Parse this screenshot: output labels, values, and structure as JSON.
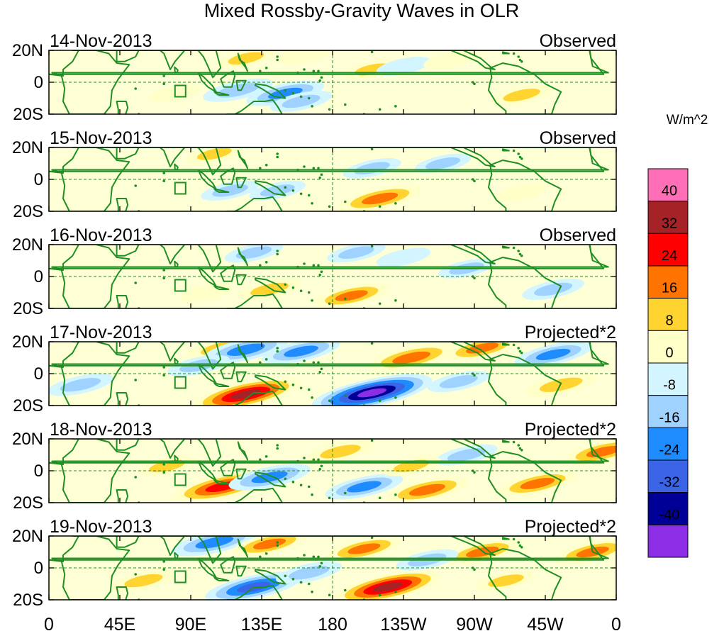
{
  "chart_data": {
    "type": "heatmap",
    "title": "Mixed Rossby-Gravity Waves in OLR",
    "units": "W/m^2",
    "x_ticks": [
      "0",
      "45E",
      "90E",
      "135E",
      "180",
      "135W",
      "90W",
      "45W",
      "0"
    ],
    "x_tick_degrees": [
      0,
      45,
      90,
      135,
      180,
      225,
      270,
      315,
      360
    ],
    "y_ticks": [
      "20N",
      "0",
      "20S"
    ],
    "y_tick_degrees": [
      20,
      0,
      -20
    ],
    "lon_range": [
      0,
      360
    ],
    "lat_range": [
      -20,
      20
    ],
    "colorbar": {
      "levels": [
        "40",
        "32",
        "24",
        "16",
        "8",
        "0",
        "-8",
        "-16",
        "-24",
        "-32",
        "-40"
      ],
      "level_values": [
        40,
        32,
        24,
        16,
        8,
        0,
        -8,
        -16,
        -24,
        -32,
        -40
      ],
      "colors": [
        "#ff6fb8",
        "#a52326",
        "#ff0000",
        "#ff7300",
        "#ffd431",
        "#ffffc8",
        "#d2f5ff",
        "#a0d2ff",
        "#1e8cff",
        "#3c64e6",
        "#000096",
        "#8c2ee6"
      ]
    },
    "panels": [
      {
        "date": "14-Nov-2013",
        "label": "Observed",
        "anomalies": [
          {
            "lon": 120,
            "lat": -5,
            "value": -16
          },
          {
            "lon": 150,
            "lat": -7,
            "value": -20
          },
          {
            "lon": 160,
            "lat": -12,
            "value": -12
          },
          {
            "lon": 125,
            "lat": 15,
            "value": 10
          },
          {
            "lon": 162,
            "lat": 17,
            "value": 8
          },
          {
            "lon": 205,
            "lat": 8,
            "value": 9
          },
          {
            "lon": 225,
            "lat": 10,
            "value": -8
          },
          {
            "lon": 255,
            "lat": 14,
            "value": 8
          },
          {
            "lon": 300,
            "lat": -8,
            "value": 11
          },
          {
            "lon": 80,
            "lat": -7,
            "value": 6
          }
        ]
      },
      {
        "date": "15-Nov-2013",
        "label": "Observed",
        "anomalies": [
          {
            "lon": 210,
            "lat": -12,
            "value": 22
          },
          {
            "lon": 115,
            "lat": -7,
            "value": -10
          },
          {
            "lon": 145,
            "lat": -7,
            "value": -9
          },
          {
            "lon": 105,
            "lat": 16,
            "value": 9
          },
          {
            "lon": 205,
            "lat": 7,
            "value": -10
          },
          {
            "lon": 250,
            "lat": 10,
            "value": -9
          },
          {
            "lon": 300,
            "lat": -8,
            "value": 6
          }
        ]
      },
      {
        "date": "16-Nov-2013",
        "label": "Observed",
        "anomalies": [
          {
            "lon": 140,
            "lat": -8,
            "value": 12
          },
          {
            "lon": 192,
            "lat": -12,
            "value": 18
          },
          {
            "lon": 130,
            "lat": 15,
            "value": -10
          },
          {
            "lon": 195,
            "lat": 15,
            "value": -10
          },
          {
            "lon": 225,
            "lat": 12,
            "value": -8
          },
          {
            "lon": 265,
            "lat": 5,
            "value": -9
          },
          {
            "lon": 320,
            "lat": -8,
            "value": -12
          },
          {
            "lon": 100,
            "lat": -10,
            "value": 6
          }
        ]
      },
      {
        "date": "17-Nov-2013",
        "label": "Projected*2",
        "anomalies": [
          {
            "lon": 125,
            "lat": -13,
            "value": 34
          },
          {
            "lon": 205,
            "lat": -12,
            "value": -42
          },
          {
            "lon": 230,
            "lat": 10,
            "value": 24
          },
          {
            "lon": 275,
            "lat": 16,
            "value": 18
          },
          {
            "lon": 110,
            "lat": 16,
            "value": 16
          },
          {
            "lon": 125,
            "lat": 15,
            "value": -24
          },
          {
            "lon": 160,
            "lat": 14,
            "value": -20
          },
          {
            "lon": 95,
            "lat": 5,
            "value": -12
          },
          {
            "lon": 320,
            "lat": 12,
            "value": -20
          },
          {
            "lon": 325,
            "lat": -7,
            "value": 16
          },
          {
            "lon": 260,
            "lat": -5,
            "value": -12
          },
          {
            "lon": 20,
            "lat": -7,
            "value": -14
          }
        ]
      },
      {
        "date": "18-Nov-2013",
        "label": "Projected*2",
        "anomalies": [
          {
            "lon": 110,
            "lat": -10,
            "value": 30
          },
          {
            "lon": 140,
            "lat": -4,
            "value": -22
          },
          {
            "lon": 200,
            "lat": -10,
            "value": -20
          },
          {
            "lon": 240,
            "lat": -12,
            "value": 22
          },
          {
            "lon": 310,
            "lat": -8,
            "value": 20
          },
          {
            "lon": 185,
            "lat": 12,
            "value": 14
          },
          {
            "lon": 352,
            "lat": 12,
            "value": 20
          },
          {
            "lon": 265,
            "lat": 10,
            "value": -12
          },
          {
            "lon": 75,
            "lat": 3,
            "value": 10
          },
          {
            "lon": 230,
            "lat": 3,
            "value": 10
          }
        ]
      },
      {
        "date": "19-Nov-2013",
        "label": "Projected*2",
        "anomalies": [
          {
            "lon": 215,
            "lat": -12,
            "value": 34
          },
          {
            "lon": 130,
            "lat": -12,
            "value": -30
          },
          {
            "lon": 105,
            "lat": 16,
            "value": -24
          },
          {
            "lon": 140,
            "lat": 15,
            "value": 18
          },
          {
            "lon": 200,
            "lat": 12,
            "value": 18
          },
          {
            "lon": 275,
            "lat": 10,
            "value": 18
          },
          {
            "lon": 345,
            "lat": 10,
            "value": 18
          },
          {
            "lon": 240,
            "lat": 5,
            "value": -12
          },
          {
            "lon": 60,
            "lat": -8,
            "value": 12
          },
          {
            "lon": 165,
            "lat": -3,
            "value": -14
          },
          {
            "lon": 290,
            "lat": -8,
            "value": 10
          }
        ]
      }
    ]
  }
}
